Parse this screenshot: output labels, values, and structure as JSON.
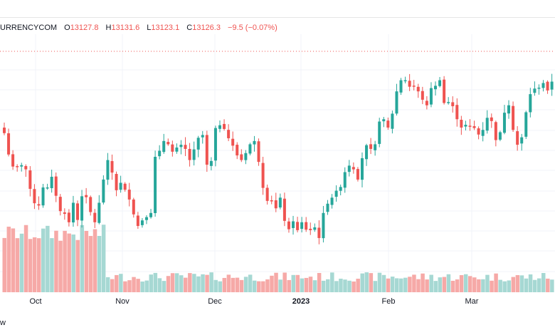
{
  "legend": {
    "symbol": "URRENCYCOM",
    "open_label": "O",
    "open": "13127.8",
    "high_label": "H",
    "high": "13131.6",
    "low_label": "L",
    "low": "13123.1",
    "close_label": "C",
    "close": "13126.3",
    "change": "−9.5 (−0.07%)"
  },
  "bottom_text": "w",
  "colors": {
    "up": "#26a69a",
    "down": "#ef5350",
    "up_volume": "#a6d8d3",
    "down_volume": "#f6a9a7",
    "grid": "#f0f3fa",
    "price_line": "#ef5350"
  },
  "chart_data": {
    "type": "candlestick",
    "x_axis_labels": [
      "Oct",
      "Nov",
      "Dec",
      "2023",
      "Feb",
      "Mar"
    ],
    "grid": true,
    "series": {
      "dates": [
        "2022-09-21",
        "2022-09-22",
        "2022-09-23",
        "2022-09-26",
        "2022-09-27",
        "2022-09-28",
        "2022-09-29",
        "2022-09-30",
        "2022-10-03",
        "2022-10-04",
        "2022-10-05",
        "2022-10-06",
        "2022-10-07",
        "2022-10-10",
        "2022-10-11",
        "2022-10-12",
        "2022-10-13",
        "2022-10-14",
        "2022-10-17",
        "2022-10-18",
        "2022-10-19",
        "2022-10-20",
        "2022-10-21",
        "2022-10-24",
        "2022-10-25",
        "2022-10-26",
        "2022-10-27",
        "2022-10-28",
        "2022-10-31",
        "2022-11-01",
        "2022-11-02",
        "2022-11-03",
        "2022-11-04",
        "2022-11-07",
        "2022-11-08",
        "2022-11-09",
        "2022-11-10",
        "2022-11-11",
        "2022-11-14",
        "2022-11-15",
        "2022-11-16",
        "2022-11-17",
        "2022-11-18",
        "2022-11-21",
        "2022-11-22",
        "2022-11-23",
        "2022-11-25",
        "2022-11-28",
        "2022-11-29",
        "2022-11-30",
        "2022-12-01",
        "2022-12-02",
        "2022-12-05",
        "2022-12-06",
        "2022-12-07",
        "2022-12-08",
        "2022-12-09",
        "2022-12-12",
        "2022-12-13",
        "2022-12-14",
        "2022-12-15",
        "2022-12-16",
        "2022-12-19",
        "2022-12-20",
        "2022-12-21",
        "2022-12-22",
        "2022-12-23",
        "2022-12-27",
        "2022-12-28",
        "2022-12-29",
        "2022-12-30",
        "2023-01-03",
        "2023-01-04",
        "2023-01-05",
        "2023-01-06",
        "2023-01-09",
        "2023-01-10",
        "2023-01-11",
        "2023-01-12",
        "2023-01-13",
        "2023-01-17",
        "2023-01-18",
        "2023-01-19",
        "2023-01-20",
        "2023-01-23",
        "2023-01-24",
        "2023-01-25",
        "2023-01-26",
        "2023-01-27",
        "2023-01-30",
        "2023-01-31",
        "2023-02-01",
        "2023-02-02",
        "2023-02-03",
        "2023-02-06",
        "2023-02-07",
        "2023-02-08",
        "2023-02-09",
        "2023-02-10",
        "2023-02-13",
        "2023-02-14",
        "2023-02-15",
        "2023-02-16",
        "2023-02-17",
        "2023-02-21",
        "2023-02-22",
        "2023-02-23",
        "2023-02-24",
        "2023-02-27",
        "2023-02-28",
        "2023-03-01",
        "2023-03-02",
        "2023-03-03",
        "2023-03-06",
        "2023-03-07",
        "2023-03-08",
        "2023-03-09",
        "2023-03-10",
        "2023-03-13",
        "2023-03-14",
        "2023-03-15",
        "2023-03-16",
        "2023-03-17",
        "2023-03-20",
        "2023-03-21",
        "2023-03-22",
        "2023-03-23",
        "2023-03-24"
      ],
      "close": [
        11470,
        11240,
        11110,
        11105,
        11125,
        11080,
        10870,
        10715,
        10690,
        10885,
        10885,
        11000,
        10795,
        10630,
        10600,
        10510,
        10720,
        10535,
        10790,
        10780,
        10620,
        10510,
        10720,
        10970,
        11180,
        11045,
        10855,
        10935,
        10860,
        10755,
        10595,
        10470,
        10530,
        10565,
        10610,
        11215,
        11280,
        11385,
        11350,
        11270,
        11315,
        11345,
        11300,
        11180,
        11295,
        11420,
        11450,
        11130,
        11170,
        11525,
        11555,
        11515,
        11415,
        11335,
        11230,
        11180,
        11255,
        11350,
        11385,
        11160,
        10880,
        10740,
        10735,
        10660,
        10775,
        10525,
        10435,
        10520,
        10425,
        10510,
        10430,
        10425,
        10455,
        10340,
        10610,
        10710,
        10775,
        10850,
        10890,
        11050,
        11120,
        11080,
        10970,
        11200,
        11340,
        11300,
        11350,
        11595,
        11620,
        11530,
        11680,
        11920,
        12040,
        12040,
        11970,
        11970,
        11920,
        11830,
        11770,
        11955,
        11980,
        12040,
        11795,
        11805,
        11760,
        11620,
        11530,
        11560,
        11550,
        11525,
        11455,
        11505,
        11635,
        11600,
        11395,
        11480,
        11690,
        11770,
        11505,
        11345,
        11425,
        11695,
        11890,
        11950,
        11960,
        12010,
        11930,
        12025
      ]
    },
    "volume_note": "volume histogram along the bottom, colored by candle direction"
  }
}
